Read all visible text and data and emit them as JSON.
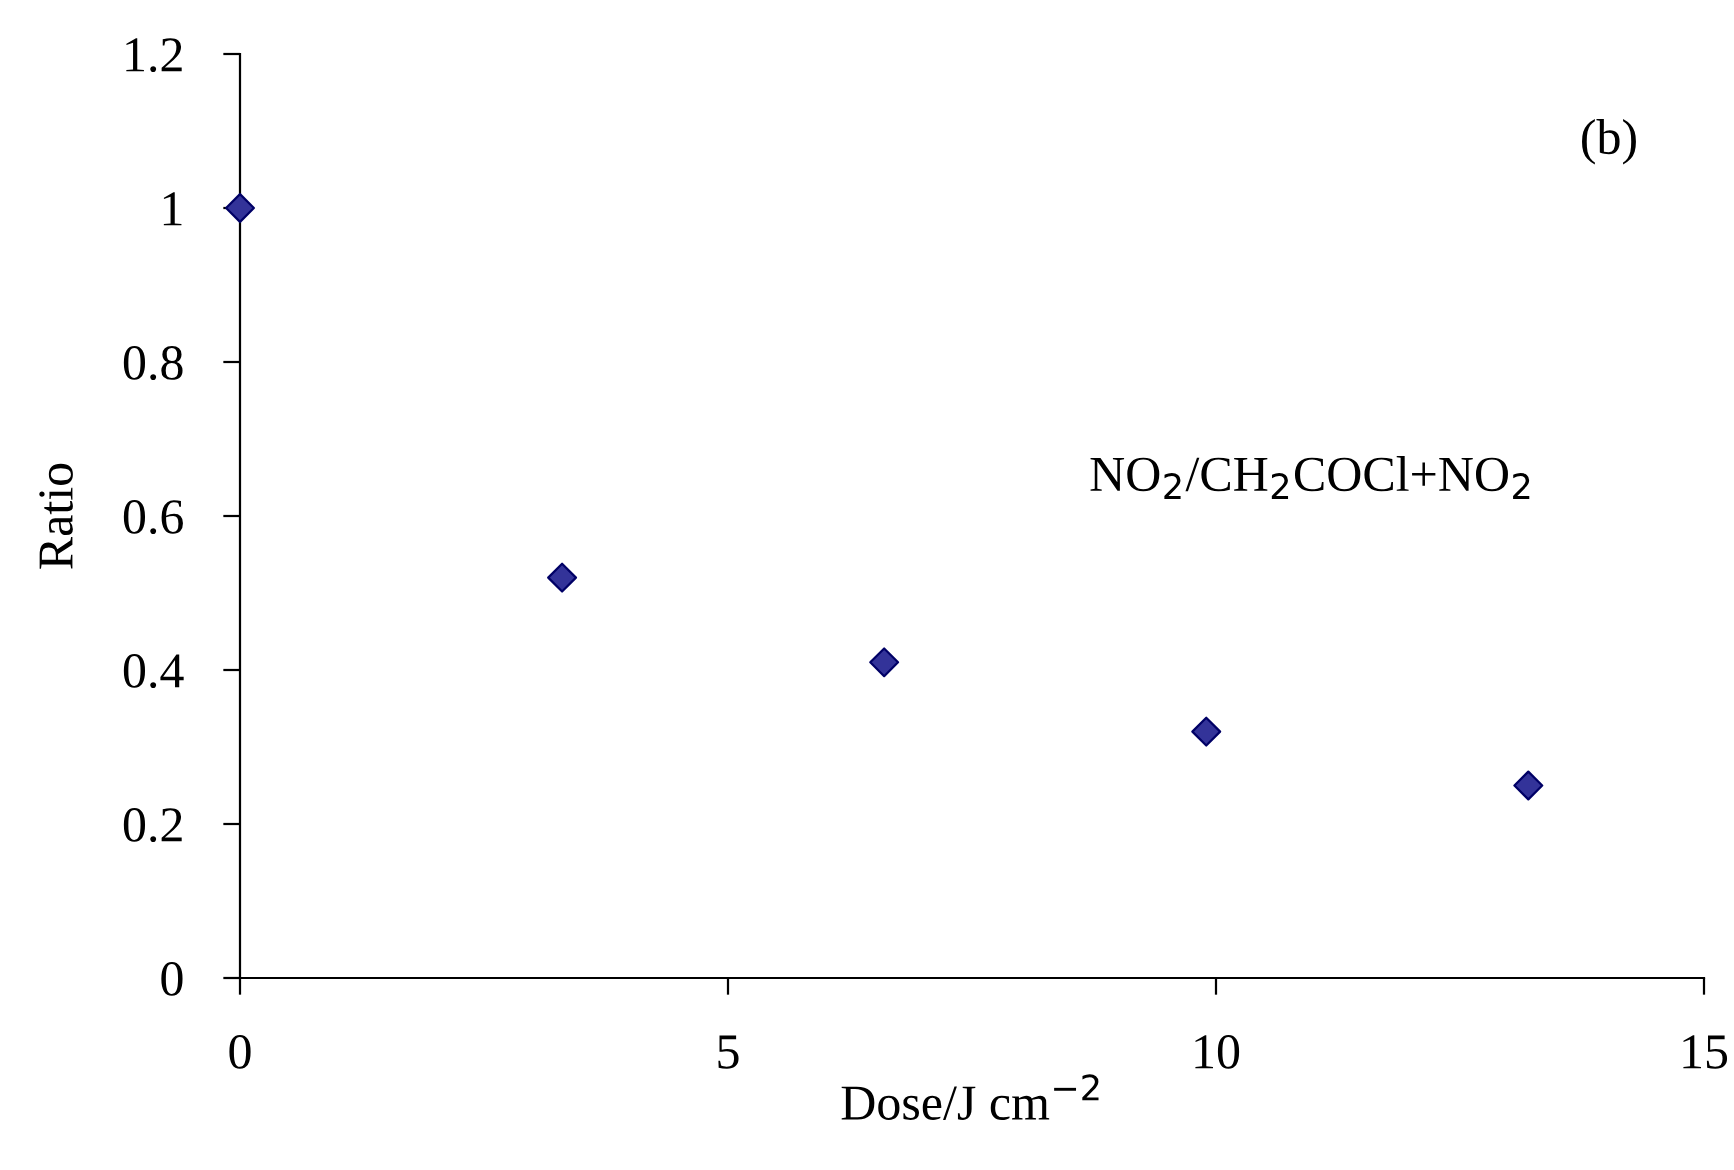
{
  "chart_data": {
    "type": "scatter",
    "x": [
      0,
      3.3,
      6.6,
      9.9,
      13.2
    ],
    "series": [
      {
        "color": "#333399",
        "values": [
          1.0,
          0.52,
          0.41,
          0.32,
          0.25
        ]
      }
    ],
    "xlabel": "Dose/J cm$^{−2}$",
    "ylabel": "Ratio",
    "annotations": [
      "(b)",
      "NO$_{2}$/CH$_{2}$COCl+NO$_{2}$"
    ],
    "xlim": [
      0,
      15
    ],
    "xticks": [
      0,
      5,
      10,
      15
    ],
    "ylim": [
      0,
      1.2
    ],
    "yticks": [
      0,
      0.2,
      0.4,
      0.6,
      0.8,
      1,
      1.2
    ],
    "marker": "diamond",
    "grid": false,
    "legend": false
  }
}
